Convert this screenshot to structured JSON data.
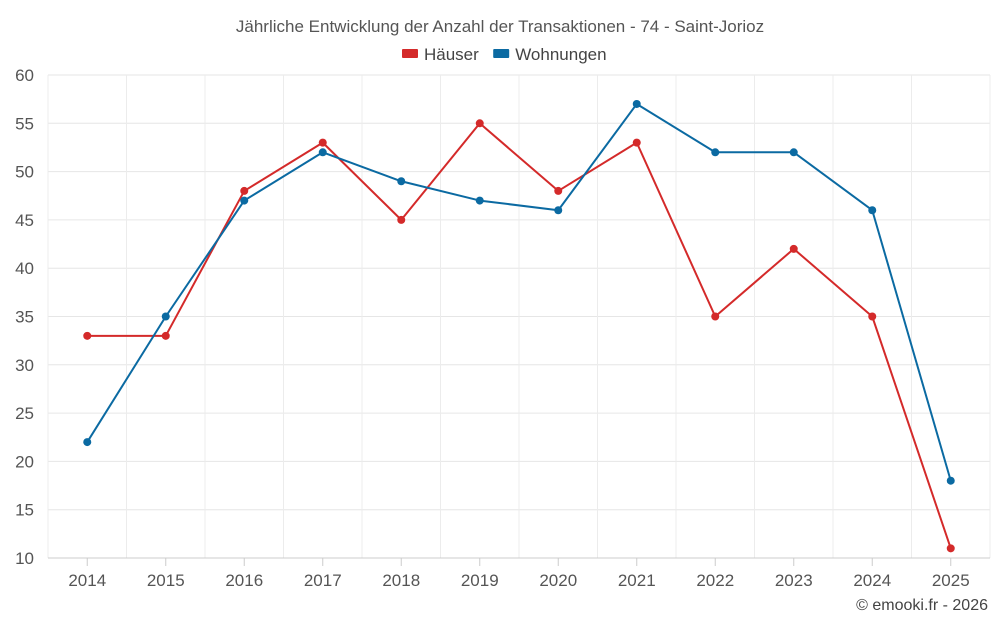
{
  "chart_data": {
    "type": "line",
    "title": "Jährliche Entwicklung der Anzahl der Transaktionen - 74 - Saint-Jorioz",
    "categories": [
      "2014",
      "2015",
      "2016",
      "2017",
      "2018",
      "2019",
      "2020",
      "2021",
      "2022",
      "2023",
      "2024",
      "2025"
    ],
    "series": [
      {
        "name": "Häuser",
        "color": "#d42a2a",
        "values": [
          33,
          33,
          48,
          53,
          45,
          55,
          48,
          53,
          35,
          42,
          35,
          11
        ]
      },
      {
        "name": "Wohnungen",
        "color": "#0b6aa2",
        "values": [
          22,
          35,
          47,
          52,
          49,
          47,
          46,
          57,
          52,
          52,
          46,
          18
        ]
      }
    ],
    "ylim": [
      10,
      60
    ],
    "yticks": [
      10,
      15,
      20,
      25,
      30,
      35,
      40,
      45,
      50,
      55,
      60
    ],
    "xlabel": "",
    "ylabel": "",
    "grid": true,
    "legend_position": "top-center"
  },
  "credit": "© emooki.fr - 2026"
}
